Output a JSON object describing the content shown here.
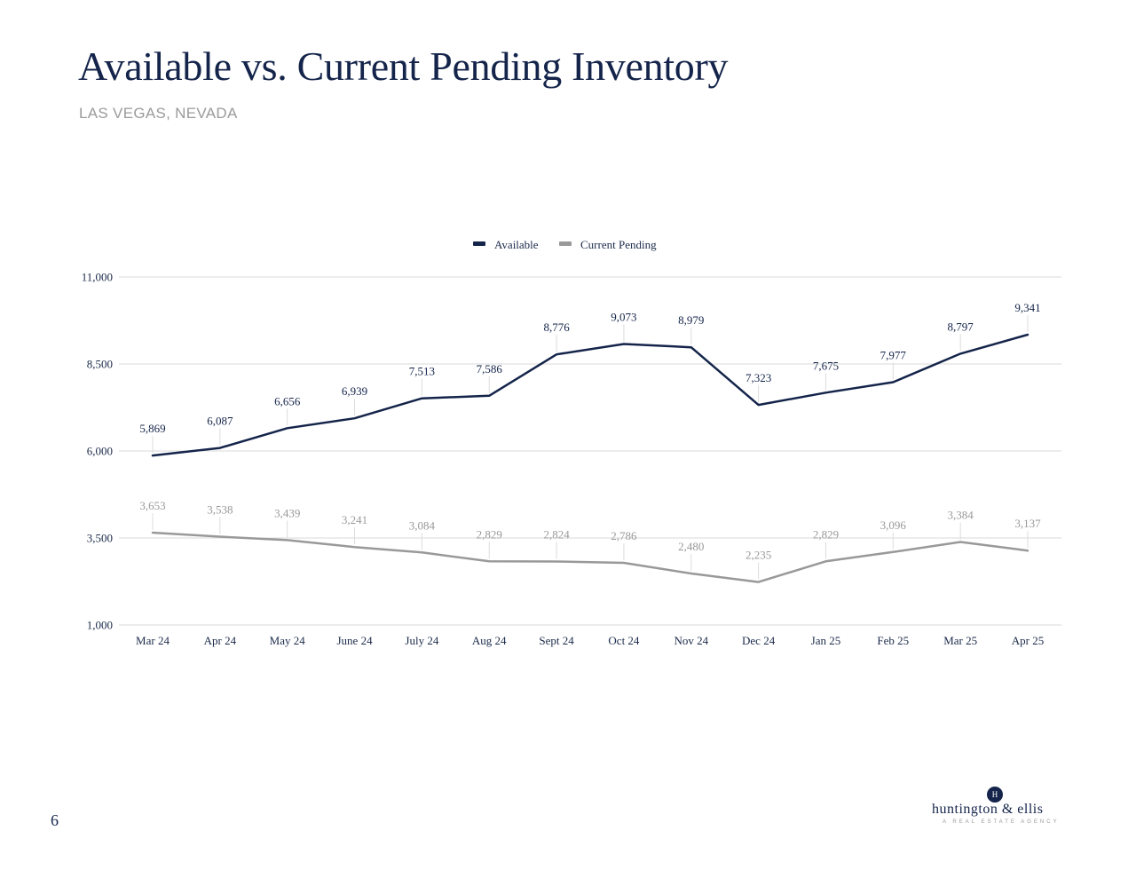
{
  "page": {
    "title": "Available vs. Current Pending Inventory",
    "subtitle": "LAS VEGAS, NEVADA",
    "page_number": "6"
  },
  "logo": {
    "mark": "H",
    "name": "huntington & ellis",
    "tagline": "A REAL ESTATE AGENCY"
  },
  "colors": {
    "available": "#14244a",
    "pending": "#999999",
    "grid": "#d9d9d9"
  },
  "chart_data": {
    "type": "line",
    "title": "",
    "xlabel": "",
    "ylabel": "",
    "categories": [
      "Mar 24",
      "Apr 24",
      "May 24",
      "June 24",
      "July 24",
      "Aug 24",
      "Sept 24",
      "Oct 24",
      "Nov 24",
      "Dec 24",
      "Jan 25",
      "Feb 25",
      "Mar 25",
      "Apr 25"
    ],
    "ylim": [
      1000,
      11000
    ],
    "yticks": [
      1000,
      3500,
      6000,
      8500,
      11000
    ],
    "ytick_labels": [
      "1,000",
      "3,500",
      "6,000",
      "8,500",
      "11,000"
    ],
    "grid": true,
    "legend_position": "top-center",
    "series": [
      {
        "name": "Available",
        "values": [
          5869,
          6087,
          6656,
          6939,
          7513,
          7586,
          8776,
          9073,
          8979,
          7323,
          7675,
          7977,
          8797,
          9341
        ],
        "labels": [
          "5,869",
          "6,087",
          "6,656",
          "6,939",
          "7,513",
          "7,586",
          "8,776",
          "9,073",
          "8,979",
          "7,323",
          "7,675",
          "7,977",
          "8,797",
          "9,341"
        ]
      },
      {
        "name": "Current Pending",
        "values": [
          3653,
          3538,
          3439,
          3241,
          3084,
          2829,
          2824,
          2786,
          2480,
          2235,
          2829,
          3096,
          3384,
          3137
        ],
        "labels": [
          "3,653",
          "3,538",
          "3,439",
          "3,241",
          "3,084",
          "2,829",
          "2,824",
          "2,786",
          "2,480",
          "2,235",
          "2,829",
          "3,096",
          "3,384",
          "3,137"
        ]
      }
    ]
  }
}
